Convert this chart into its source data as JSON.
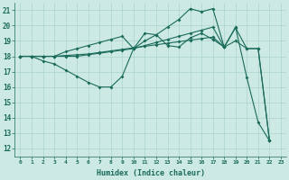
{
  "xlabel": "Humidex (Indice chaleur)",
  "bg_color": "#cce9e4",
  "grid_color": "#b0d8d0",
  "line_color": "#1a6b5a",
  "xlim": [
    -0.5,
    23.5
  ],
  "ylim": [
    11.5,
    21.5
  ],
  "yticks": [
    12,
    13,
    14,
    15,
    16,
    17,
    18,
    19,
    20,
    21
  ],
  "line1_x": [
    0,
    1,
    2,
    3,
    4,
    5,
    6,
    7,
    8,
    9,
    10,
    11,
    12,
    13,
    14,
    15,
    16,
    17,
    18,
    19,
    20,
    21,
    22
  ],
  "line1_y": [
    18.0,
    18.0,
    18.0,
    18.0,
    18.05,
    18.1,
    18.15,
    18.25,
    18.35,
    18.45,
    18.55,
    18.65,
    18.75,
    18.85,
    18.95,
    19.05,
    19.15,
    19.25,
    18.6,
    19.85,
    18.5,
    18.5,
    12.5
  ],
  "line2_x": [
    0,
    1,
    2,
    3,
    4,
    5,
    6,
    7,
    8,
    9,
    10,
    11,
    12,
    13,
    14,
    15,
    16,
    17,
    18
  ],
  "line2_y": [
    18.0,
    18.0,
    17.7,
    17.5,
    17.1,
    16.7,
    16.3,
    16.0,
    16.0,
    16.7,
    18.5,
    19.0,
    19.4,
    18.7,
    18.6,
    19.2,
    19.5,
    19.1,
    18.6
  ],
  "line3_x": [
    0,
    1,
    2,
    3,
    4,
    5,
    6,
    7,
    8,
    9,
    10,
    11,
    12,
    13,
    14,
    15,
    16,
    17,
    18,
    19,
    20,
    21,
    22
  ],
  "line3_y": [
    18.0,
    18.0,
    18.0,
    18.0,
    18.3,
    18.5,
    18.7,
    18.9,
    19.1,
    19.3,
    18.5,
    19.5,
    19.4,
    19.9,
    20.4,
    21.1,
    20.9,
    21.1,
    18.6,
    19.9,
    16.6,
    13.7,
    12.5
  ],
  "line4_x": [
    0,
    1,
    2,
    3,
    4,
    5,
    6,
    7,
    8,
    9,
    10,
    11,
    12,
    13,
    14,
    15,
    16,
    17,
    18,
    19,
    20,
    21,
    22
  ],
  "line4_y": [
    18.0,
    18.0,
    18.0,
    18.0,
    18.0,
    18.0,
    18.1,
    18.2,
    18.3,
    18.4,
    18.5,
    18.7,
    18.9,
    19.1,
    19.3,
    19.5,
    19.7,
    19.9,
    18.6,
    19.0,
    18.5,
    18.5,
    12.5
  ]
}
